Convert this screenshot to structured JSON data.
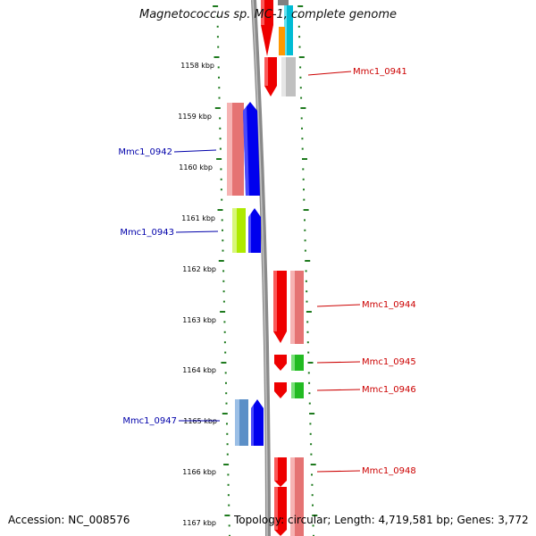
{
  "title": "Magnetococcus sp. MC-1, complete genome",
  "footer": {
    "accession": "Accession: NC_008576",
    "topology": "Topology: circular; Length: 4,719,581 bp; Genes: 3,772"
  },
  "colors": {
    "backbone": "#8a8a8a",
    "plus_strand_label": "#cc0000",
    "minus_strand_label": "#0000aa",
    "ruler": "#1e7a1e"
  },
  "kbp_ticks": [
    "1158 kbp",
    "1159 kbp",
    "1160 kbp",
    "1161 kbp",
    "1162 kbp",
    "1163 kbp",
    "1164 kbp",
    "1165 kbp",
    "1166 kbp",
    "1167 kbp"
  ],
  "gene_labels": [
    {
      "text": "Mmc1_0941",
      "strand": "plus"
    },
    {
      "text": "Mmc1_0942",
      "strand": "minus"
    },
    {
      "text": "Mmc1_0943",
      "strand": "minus"
    },
    {
      "text": "Mmc1_0944",
      "strand": "plus"
    },
    {
      "text": "Mmc1_0945",
      "strand": "plus"
    },
    {
      "text": "Mmc1_0946",
      "strand": "plus"
    },
    {
      "text": "Mmc1_0947",
      "strand": "minus"
    },
    {
      "text": "Mmc1_0948",
      "strand": "plus"
    }
  ]
}
